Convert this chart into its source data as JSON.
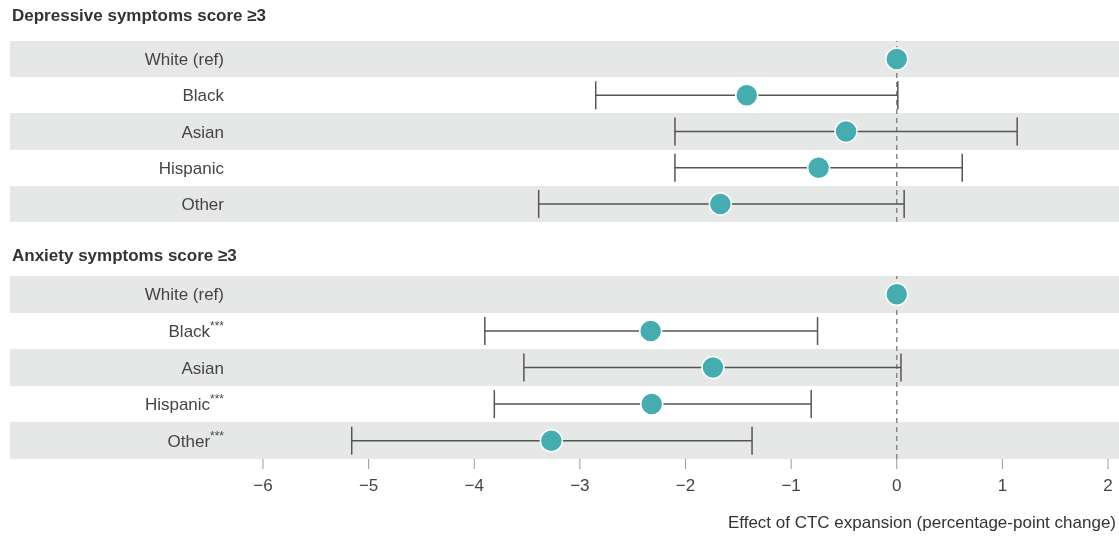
{
  "chart_data": [
    {
      "type": "scatter",
      "orientation": "horizontal",
      "title": "Depressive symptoms score ≥3",
      "categories": [
        "White (ref)",
        "Black",
        "Asian",
        "Hispanic",
        "Other"
      ],
      "values": [
        0,
        -1.42,
        -0.48,
        -0.74,
        -1.67
      ],
      "errors": [
        null,
        [
          -2.85,
          0.01
        ],
        [
          -2.1,
          1.14
        ],
        [
          -2.1,
          0.62
        ],
        [
          -3.39,
          0.07
        ]
      ],
      "color": "#45adb0",
      "marker": "circle",
      "xlim": [
        -6,
        2
      ],
      "tick_labels": "y",
      "ref_lines": [
        {
          "axis": "x",
          "value": 0,
          "line_style": "dashed",
          "color": "#888888"
        }
      ]
    },
    {
      "type": "scatter",
      "orientation": "horizontal",
      "title": "Anxiety symptoms score ≥3",
      "xlabel": "Effect of CTC expansion (percentage-point change)",
      "categories": [
        "White (ref)",
        "Black$^{***}$",
        "Asian",
        "Hispanic$^{***}$",
        "Other$^{***}$"
      ],
      "values": [
        0,
        -2.33,
        -1.74,
        -2.32,
        -3.27
      ],
      "errors": [
        null,
        [
          -3.9,
          -0.75
        ],
        [
          -3.53,
          0.04
        ],
        [
          -3.81,
          -0.81
        ],
        [
          -5.16,
          -1.37
        ]
      ],
      "color": "#45adb0",
      "marker": "circle",
      "xlim": [
        -6,
        2
      ],
      "xticks": [
        {
          "value": -6,
          "label": "−6"
        },
        {
          "value": -5,
          "label": "−5"
        },
        {
          "value": -4,
          "label": "−4"
        },
        {
          "value": -3,
          "label": "−3"
        },
        {
          "value": -2,
          "label": "−2"
        },
        {
          "value": -1,
          "label": "−1"
        },
        0,
        1,
        2
      ],
      "ref_lines": [
        {
          "axis": "x",
          "value": 0,
          "line_style": "dashed",
          "color": "#888888"
        }
      ]
    }
  ]
}
